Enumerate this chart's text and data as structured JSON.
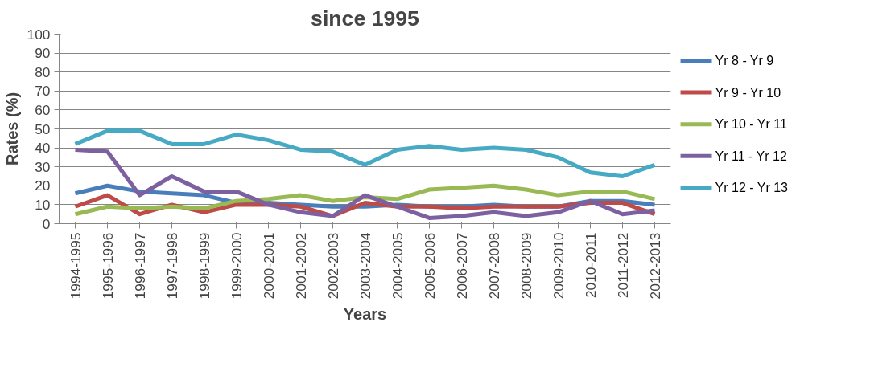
{
  "chart_data": {
    "type": "line",
    "title": "since 1995",
    "xlabel": "Years",
    "ylabel": "Rates (%)",
    "categories": [
      "1994-1995",
      "1995-1996",
      "1996-1997",
      "1997-1998",
      "1998-1999",
      "1999-2000",
      "2000-2001",
      "2001-2002",
      "2002-2003",
      "2003-2004",
      "2004-2005",
      "2005-2006",
      "2006-2007",
      "2007-2008",
      "2008-2009",
      "2009-2010",
      "2010-2011",
      "2011-2012",
      "2012-2013"
    ],
    "series": [
      {
        "name": "Yr 8 - Yr 9",
        "color": "#4a7ebb",
        "values": [
          16,
          20,
          17,
          16,
          15,
          11,
          11,
          10,
          9,
          9,
          10,
          9,
          9,
          10,
          9,
          9,
          12,
          12,
          10
        ]
      },
      {
        "name": "Yr 9 - Yr 10",
        "color": "#be4b48",
        "values": [
          9,
          15,
          5,
          10,
          6,
          10,
          10,
          9,
          4,
          11,
          9,
          9,
          8,
          9,
          9,
          9,
          11,
          11,
          5
        ]
      },
      {
        "name": "Yr 10 - Yr 11",
        "color": "#98b954",
        "values": [
          5,
          9,
          8,
          9,
          8,
          12,
          13,
          15,
          12,
          14,
          13,
          18,
          19,
          20,
          18,
          15,
          17,
          17,
          13
        ]
      },
      {
        "name": "Yr 11 - Yr 12",
        "color": "#7d60a0",
        "values": [
          39,
          38,
          15,
          25,
          17,
          17,
          10,
          6,
          4,
          15,
          9,
          3,
          4,
          6,
          4,
          6,
          12,
          5,
          7
        ]
      },
      {
        "name": "Yr 12 - Yr 13",
        "color": "#46aac5",
        "values": [
          42,
          49,
          49,
          42,
          42,
          47,
          44,
          39,
          38,
          31,
          39,
          41,
          39,
          40,
          39,
          35,
          27,
          25,
          31
        ]
      }
    ],
    "ylim": [
      0,
      100
    ],
    "yticks": [
      0,
      10,
      20,
      30,
      40,
      50,
      60,
      70,
      80,
      90,
      100
    ],
    "grid": "y",
    "legend": "right",
    "marker": "none",
    "line_style": "solid"
  }
}
